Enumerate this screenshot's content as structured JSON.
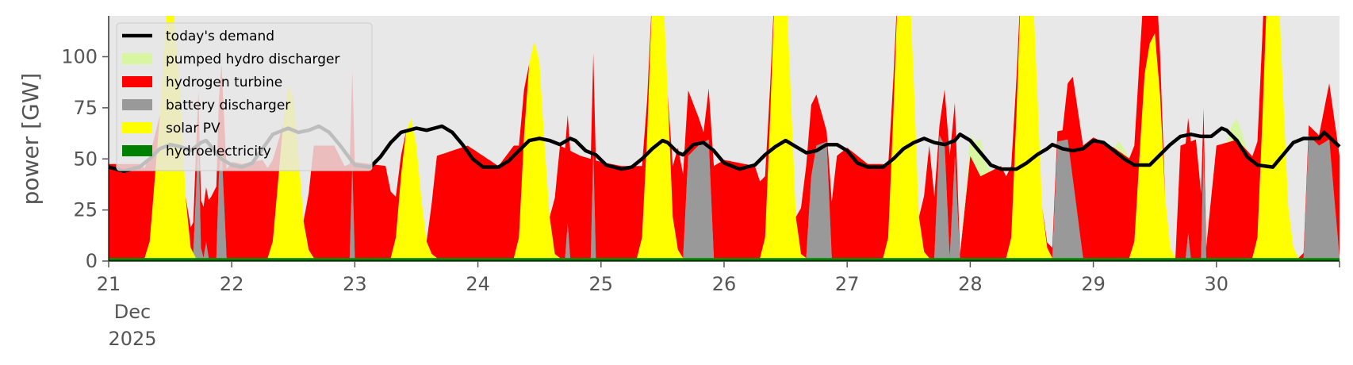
{
  "chart_data": {
    "type": "area",
    "ylabel": "power [GW]",
    "xlabel": "",
    "ylim": [
      0,
      120
    ],
    "xlim": [
      0,
      240
    ],
    "x_unit": "hours since 21 Dec 2025 00:00",
    "yticks": [
      0,
      25,
      50,
      75,
      100
    ],
    "xticks": [
      {
        "x": 0,
        "label": "21",
        "month": "Dec",
        "year": "2025"
      },
      {
        "x": 24,
        "label": "22"
      },
      {
        "x": 48,
        "label": "23"
      },
      {
        "x": 72,
        "label": "24"
      },
      {
        "x": 96,
        "label": "25"
      },
      {
        "x": 120,
        "label": "26"
      },
      {
        "x": 144,
        "label": "27"
      },
      {
        "x": 168,
        "label": "28"
      },
      {
        "x": 192,
        "label": "29"
      },
      {
        "x": 216,
        "label": "30"
      }
    ],
    "legend_position": "top-left",
    "background": "#e8e8e8",
    "colors": {
      "demand": "#000000",
      "pumped_hydro": "#d8f5a2",
      "hydrogen": "#ff0000",
      "battery": "#999999",
      "solar": "#ffff00",
      "hydro": "#008000"
    },
    "legend": [
      {
        "key": "demand",
        "label": "today's demand",
        "style": "line"
      },
      {
        "key": "pumped_hydro",
        "label": "pumped hydro discharger",
        "style": "patch"
      },
      {
        "key": "hydrogen",
        "label": "hydrogen turbine",
        "style": "patch"
      },
      {
        "key": "battery",
        "label": "battery discharger",
        "style": "patch"
      },
      {
        "key": "solar",
        "label": "solar PV",
        "style": "patch"
      },
      {
        "key": "hydro",
        "label": "hydroelectricity",
        "style": "patch"
      }
    ],
    "stack_order": [
      "hydro",
      "solar",
      "battery",
      "hydrogen",
      "pumped_hydro"
    ],
    "demand": [
      [
        0,
        46
      ],
      [
        3,
        44
      ],
      [
        6,
        46
      ],
      [
        8,
        50
      ],
      [
        10,
        55
      ],
      [
        12,
        57
      ],
      [
        14,
        56
      ],
      [
        16,
        54
      ],
      [
        18,
        58
      ],
      [
        19,
        59
      ],
      [
        20,
        56
      ],
      [
        22,
        50
      ],
      [
        24,
        47
      ],
      [
        26,
        46
      ],
      [
        28,
        48
      ],
      [
        30,
        55
      ],
      [
        32,
        62
      ],
      [
        34,
        64
      ],
      [
        35,
        65
      ],
      [
        37,
        63
      ],
      [
        39,
        64
      ],
      [
        41,
        66
      ],
      [
        43,
        63
      ],
      [
        45,
        57
      ],
      [
        48,
        47
      ],
      [
        51,
        46
      ],
      [
        53,
        51
      ],
      [
        55,
        58
      ],
      [
        57,
        63
      ],
      [
        60,
        65
      ],
      [
        62,
        64
      ],
      [
        65,
        66
      ],
      [
        67,
        63
      ],
      [
        69,
        57
      ],
      [
        71,
        50
      ],
      [
        73,
        46
      ],
      [
        76,
        46
      ],
      [
        78,
        49
      ],
      [
        80,
        54
      ],
      [
        82,
        59
      ],
      [
        84,
        60
      ],
      [
        86,
        59
      ],
      [
        88,
        57
      ],
      [
        90,
        60
      ],
      [
        91,
        59
      ],
      [
        93,
        54
      ],
      [
        95,
        52
      ],
      [
        97,
        47
      ],
      [
        100,
        45
      ],
      [
        102,
        46
      ],
      [
        104,
        50
      ],
      [
        106,
        55
      ],
      [
        108,
        59
      ],
      [
        109,
        58
      ],
      [
        111,
        53
      ],
      [
        112,
        52
      ],
      [
        114,
        57
      ],
      [
        116,
        58
      ],
      [
        118,
        54
      ],
      [
        120,
        48
      ],
      [
        123,
        45
      ],
      [
        126,
        47
      ],
      [
        128,
        52
      ],
      [
        130,
        56
      ],
      [
        132,
        59
      ],
      [
        134,
        56
      ],
      [
        136,
        53
      ],
      [
        138,
        54
      ],
      [
        140,
        57
      ],
      [
        142,
        57
      ],
      [
        144,
        54
      ],
      [
        146,
        48
      ],
      [
        148,
        46
      ],
      [
        151,
        46
      ],
      [
        153,
        50
      ],
      [
        155,
        55
      ],
      [
        157,
        58
      ],
      [
        159,
        60
      ],
      [
        161,
        58
      ],
      [
        163,
        57
      ],
      [
        165,
        59
      ],
      [
        166,
        62
      ],
      [
        168,
        59
      ],
      [
        170,
        53
      ],
      [
        172,
        47
      ],
      [
        174,
        45
      ],
      [
        177,
        45
      ],
      [
        179,
        48
      ],
      [
        181,
        52
      ],
      [
        183,
        55
      ],
      [
        184,
        57
      ],
      [
        186,
        55
      ],
      [
        188,
        54
      ],
      [
        190,
        55
      ],
      [
        192,
        59
      ],
      [
        194,
        58
      ],
      [
        196,
        54
      ],
      [
        198,
        50
      ],
      [
        200,
        47
      ],
      [
        203,
        47
      ],
      [
        205,
        52
      ],
      [
        207,
        57
      ],
      [
        209,
        61
      ],
      [
        211,
        62
      ],
      [
        213,
        61
      ],
      [
        215,
        61
      ],
      [
        217,
        65
      ],
      [
        218,
        64
      ],
      [
        220,
        59
      ],
      [
        222,
        51
      ],
      [
        224,
        47
      ],
      [
        227,
        46
      ],
      [
        229,
        52
      ],
      [
        231,
        58
      ],
      [
        233,
        60
      ],
      [
        236,
        60
      ],
      [
        237,
        63
      ],
      [
        240,
        56
      ]
    ],
    "series": {
      "hydro": [
        [
          0,
          1.5
        ],
        [
          240,
          1.5
        ]
      ],
      "solar": [
        [
          0,
          0
        ],
        [
          7,
          0
        ],
        [
          8,
          8
        ],
        [
          10,
          70
        ],
        [
          11,
          110
        ],
        [
          12,
          140
        ],
        [
          13,
          110
        ],
        [
          14,
          80
        ],
        [
          15,
          30
        ],
        [
          16,
          5
        ],
        [
          17,
          0
        ],
        [
          31,
          0
        ],
        [
          32,
          8
        ],
        [
          34,
          65
        ],
        [
          35,
          85
        ],
        [
          36,
          78
        ],
        [
          37,
          50
        ],
        [
          38,
          18
        ],
        [
          39,
          4
        ],
        [
          40,
          0
        ],
        [
          55,
          0
        ],
        [
          56,
          10
        ],
        [
          57,
          40
        ],
        [
          58,
          62
        ],
        [
          59,
          68
        ],
        [
          60,
          55
        ],
        [
          61,
          28
        ],
        [
          62,
          8
        ],
        [
          63,
          2
        ],
        [
          64,
          0
        ],
        [
          79,
          0
        ],
        [
          80,
          10
        ],
        [
          81,
          60
        ],
        [
          82,
          95
        ],
        [
          83,
          106
        ],
        [
          84,
          96
        ],
        [
          85,
          55
        ],
        [
          86,
          20
        ],
        [
          87,
          2
        ],
        [
          88,
          0
        ],
        [
          103,
          0
        ],
        [
          104,
          10
        ],
        [
          105,
          60
        ],
        [
          106,
          130
        ],
        [
          107,
          150
        ],
        [
          108,
          140
        ],
        [
          109,
          80
        ],
        [
          110,
          20
        ],
        [
          111,
          4
        ],
        [
          112,
          0
        ],
        [
          127,
          0
        ],
        [
          128,
          10
        ],
        [
          129,
          70
        ],
        [
          130,
          140
        ],
        [
          131,
          160
        ],
        [
          132,
          140
        ],
        [
          133,
          80
        ],
        [
          134,
          20
        ],
        [
          135,
          2
        ],
        [
          136,
          0
        ],
        [
          151,
          0
        ],
        [
          152,
          10
        ],
        [
          153,
          70
        ],
        [
          154,
          140
        ],
        [
          155,
          160
        ],
        [
          156,
          145
        ],
        [
          157,
          85
        ],
        [
          158,
          20
        ],
        [
          159,
          3
        ],
        [
          160,
          0
        ],
        [
          175,
          0
        ],
        [
          176,
          10
        ],
        [
          177,
          70
        ],
        [
          178,
          140
        ],
        [
          179,
          160
        ],
        [
          180,
          145
        ],
        [
          181,
          85
        ],
        [
          182,
          25
        ],
        [
          183,
          5
        ],
        [
          184,
          0
        ],
        [
          199,
          0
        ],
        [
          200,
          8
        ],
        [
          201,
          50
        ],
        [
          202,
          90
        ],
        [
          203,
          105
        ],
        [
          204,
          110
        ],
        [
          205,
          80
        ],
        [
          206,
          30
        ],
        [
          207,
          5
        ],
        [
          208,
          0
        ],
        [
          223,
          0
        ],
        [
          224,
          10
        ],
        [
          225,
          70
        ],
        [
          226,
          140
        ],
        [
          227,
          160
        ],
        [
          228,
          140
        ],
        [
          229,
          80
        ],
        [
          230,
          25
        ],
        [
          231,
          5
        ],
        [
          232,
          0
        ],
        [
          240,
          0
        ]
      ],
      "battery": [
        [
          0,
          0
        ],
        [
          16.5,
          0
        ],
        [
          17,
          30
        ],
        [
          17.5,
          60
        ],
        [
          18,
          5
        ],
        [
          18.5,
          0
        ],
        [
          19,
          8
        ],
        [
          19.5,
          0
        ],
        [
          21,
          0
        ],
        [
          21.5,
          40
        ],
        [
          22,
          55
        ],
        [
          23,
          0
        ],
        [
          47,
          0
        ],
        [
          47.5,
          45
        ],
        [
          48,
          0
        ],
        [
          89,
          0
        ],
        [
          89.5,
          17
        ],
        [
          90,
          0
        ],
        [
          94,
          0
        ],
        [
          94.5,
          52
        ],
        [
          95,
          0
        ],
        [
          112,
          0
        ],
        [
          113,
          50
        ],
        [
          115,
          55
        ],
        [
          117,
          58
        ],
        [
          118,
          0
        ],
        [
          136,
          0
        ],
        [
          137,
          40
        ],
        [
          138,
          55
        ],
        [
          140,
          57
        ],
        [
          141,
          0
        ],
        [
          161,
          0
        ],
        [
          162,
          60
        ],
        [
          163,
          55
        ],
        [
          164,
          0
        ],
        [
          165,
          50
        ],
        [
          166,
          0
        ],
        [
          184,
          0
        ],
        [
          185,
          57
        ],
        [
          187,
          58
        ],
        [
          190,
          0
        ],
        [
          210,
          0
        ],
        [
          210.5,
          12
        ],
        [
          211,
          0
        ],
        [
          213,
          0
        ],
        [
          213.5,
          55
        ],
        [
          214,
          0
        ],
        [
          233,
          0
        ],
        [
          234,
          60
        ],
        [
          236,
          55
        ],
        [
          238,
          58
        ],
        [
          240,
          0
        ]
      ],
      "hydrogen": [
        [
          0,
          46
        ],
        [
          6,
          46
        ],
        [
          8,
          42
        ],
        [
          10,
          0
        ],
        [
          15,
          0
        ],
        [
          17,
          20
        ],
        [
          20,
          30
        ],
        [
          22,
          40
        ],
        [
          24,
          47
        ],
        [
          26,
          46
        ],
        [
          30,
          48
        ],
        [
          32,
          40
        ],
        [
          34,
          0
        ],
        [
          38,
          0
        ],
        [
          40,
          55
        ],
        [
          44,
          55
        ],
        [
          46,
          45
        ],
        [
          48,
          47
        ],
        [
          51,
          46
        ],
        [
          54,
          45
        ],
        [
          56,
          20
        ],
        [
          58,
          0
        ],
        [
          62,
          0
        ],
        [
          64,
          50
        ],
        [
          70,
          55
        ],
        [
          76,
          45
        ],
        [
          79,
          55
        ],
        [
          80,
          45
        ],
        [
          82,
          0
        ],
        [
          86,
          0
        ],
        [
          88,
          55
        ],
        [
          92,
          50
        ],
        [
          96,
          47
        ],
        [
          100,
          45
        ],
        [
          103,
          45
        ],
        [
          104,
          35
        ],
        [
          106,
          0
        ],
        [
          109,
          0
        ],
        [
          111,
          50
        ],
        [
          116,
          5
        ],
        [
          118,
          45
        ],
        [
          120,
          48
        ],
        [
          124,
          46
        ],
        [
          126,
          45
        ],
        [
          128,
          30
        ],
        [
          130,
          0
        ],
        [
          134,
          0
        ],
        [
          136,
          45
        ],
        [
          140,
          5
        ],
        [
          142,
          50
        ],
        [
          144,
          54
        ],
        [
          148,
          46
        ],
        [
          151,
          46
        ],
        [
          152,
          35
        ],
        [
          154,
          0
        ],
        [
          158,
          0
        ],
        [
          160,
          55
        ],
        [
          162,
          5
        ],
        [
          164,
          50
        ],
        [
          166,
          2
        ],
        [
          168,
          50
        ],
        [
          170,
          40
        ],
        [
          174,
          45
        ],
        [
          176,
          35
        ],
        [
          178,
          0
        ],
        [
          182,
          0
        ],
        [
          184,
          5
        ],
        [
          186,
          5
        ],
        [
          188,
          50
        ],
        [
          190,
          55
        ],
        [
          192,
          59
        ],
        [
          196,
          54
        ],
        [
          200,
          47
        ],
        [
          203,
          47
        ],
        [
          204,
          40
        ],
        [
          206,
          0
        ],
        [
          208,
          0
        ],
        [
          209,
          55
        ],
        [
          212,
          58
        ],
        [
          214,
          5
        ],
        [
          216,
          55
        ],
        [
          220,
          58
        ],
        [
          224,
          47
        ],
        [
          226,
          35
        ],
        [
          228,
          0
        ],
        [
          232,
          0
        ],
        [
          234,
          5
        ],
        [
          236,
          5
        ],
        [
          240,
          50
        ]
      ],
      "pumped_hydro": [
        [
          0,
          0
        ],
        [
          166,
          0
        ],
        [
          167,
          2
        ],
        [
          168,
          10
        ],
        [
          169,
          12
        ],
        [
          170,
          18
        ],
        [
          171,
          5
        ],
        [
          172,
          0
        ],
        [
          196,
          0
        ],
        [
          197,
          5
        ],
        [
          198,
          3
        ],
        [
          199,
          0
        ],
        [
          218,
          0
        ],
        [
          219,
          8
        ],
        [
          220,
          10
        ],
        [
          221,
          6
        ],
        [
          222,
          0
        ],
        [
          240,
          0
        ]
      ]
    }
  }
}
